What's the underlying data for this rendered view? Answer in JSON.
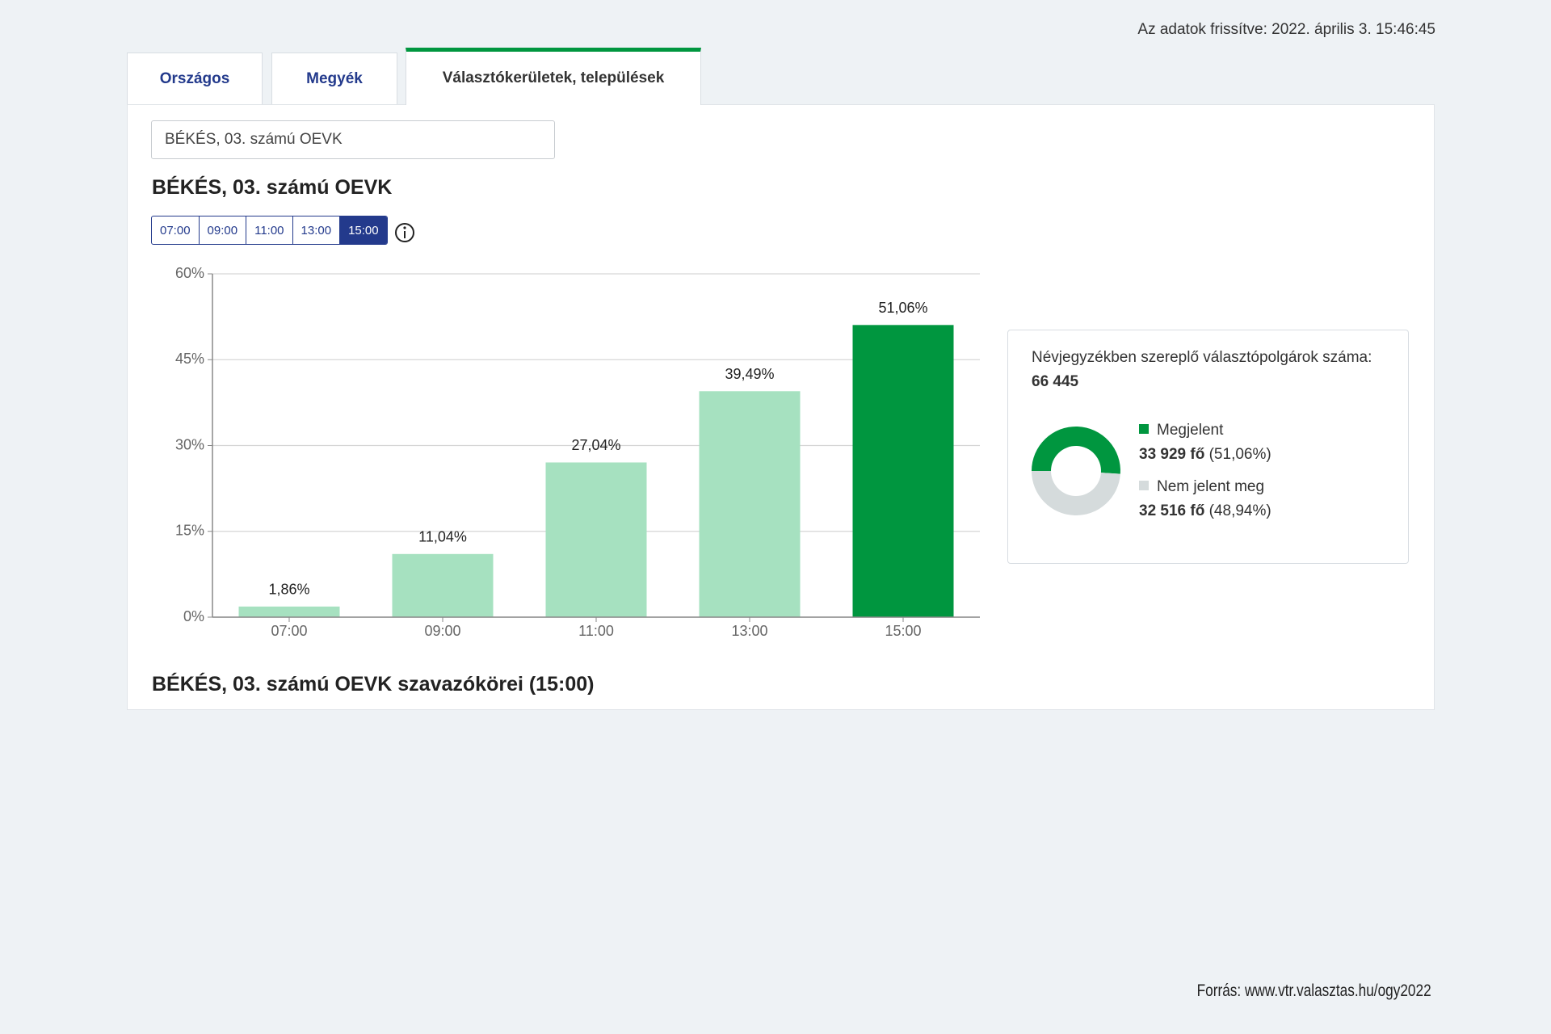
{
  "header": {
    "updated": "Az adatok frissítve: 2022. április 3. 15:46:45"
  },
  "tabs": [
    "Országos",
    "Megyék",
    "Választókerületek, települések"
  ],
  "select": "BÉKÉS, 03. számú OEVK",
  "heading": "BÉKÉS, 03. számú OEVK",
  "time_buttons": [
    "07:00",
    "09:00",
    "11:00",
    "13:00",
    "15:00"
  ],
  "chart_data": [
    {
      "type": "bar",
      "categories": [
        "07:00",
        "09:00",
        "11:00",
        "13:00",
        "15:00"
      ],
      "values": [
        1.86,
        11.04,
        27.04,
        39.49,
        51.06
      ],
      "value_labels": [
        "1,86%",
        "11,04%",
        "27,04%",
        "39,49%",
        "51,06%"
      ],
      "colors": [
        "#a6e1c0",
        "#a6e1c0",
        "#a6e1c0",
        "#a6e1c0",
        "#00963f"
      ],
      "ylim": [
        0,
        60
      ],
      "yticks": [
        {
          "value": 0,
          "label": "0%"
        },
        {
          "value": 15,
          "label": "15%"
        },
        {
          "value": 30,
          "label": "30%"
        },
        {
          "value": 45,
          "label": "45%"
        },
        {
          "value": 60,
          "label": "60%"
        }
      ],
      "grid": true
    },
    {
      "type": "pie",
      "title": "Névjegyzékben szereplő választópolgárok száma:",
      "total": "66 445",
      "categories": [
        "Megjelent",
        "Nem jelent meg"
      ],
      "count_labels": [
        "33 929 fő",
        "32 516 fő"
      ],
      "values": [
        51.06,
        48.94
      ],
      "value_labels": [
        "(51,06%)",
        "(48,94%)"
      ],
      "colors": [
        "#00963f",
        "#d5dbdc"
      ]
    }
  ],
  "section_heading": "BÉKÉS, 03. számú OEVK szavazókörei (15:00)",
  "source": "Forrás: www.vtr.valasztas.hu/ogy2022"
}
